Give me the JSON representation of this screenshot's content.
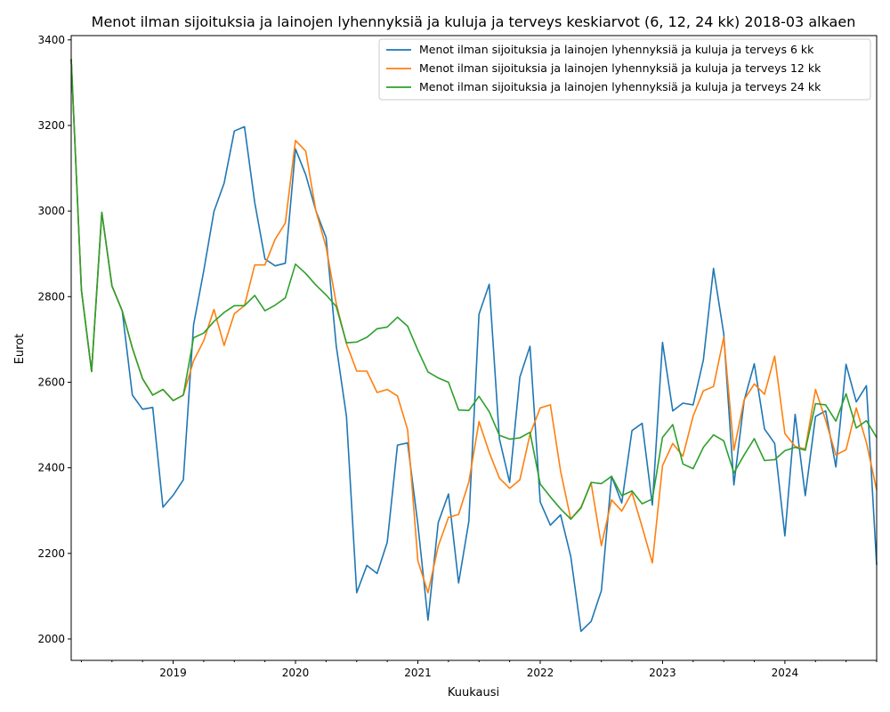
{
  "chart_data": {
    "type": "line",
    "title": "Menot ilman sijoituksia ja lainojen lyhennyksiä ja kuluja ja terveys keskiarvot (6, 12, 24 kk) 2018-03 alkaen",
    "xlabel": "Kuukausi",
    "ylabel": "Eurot",
    "start": "2018-03",
    "xlim": [
      "2018-03",
      "2024-10"
    ],
    "ylim": [
      1950,
      3410
    ],
    "year_ticks": [
      "2019",
      "2020",
      "2021",
      "2022",
      "2023",
      "2024"
    ],
    "y_ticks": [
      2000,
      2200,
      2400,
      2600,
      2800,
      3000,
      3200,
      3400
    ],
    "grid": false,
    "legend_position": "top-right",
    "series": [
      {
        "name": "Menot ilman sijoituksia ja lainojen lyhennyksiä ja kuluja ja terveys 6 kk",
        "color": "#1f77b4",
        "values": [
          3355,
          2815,
          2625,
          2997,
          2825,
          2767,
          2570,
          2537,
          2541,
          2308,
          2336,
          2372,
          2734,
          2860,
          2999,
          3065,
          3187,
          3197,
          3020,
          2888,
          2872,
          2878,
          3145,
          3085,
          3001,
          2938,
          2685,
          2520,
          2108,
          2172,
          2153,
          2226,
          2453,
          2458,
          2268,
          2044,
          2272,
          2339,
          2131,
          2275,
          2759,
          2829,
          2468,
          2366,
          2612,
          2684,
          2320,
          2266,
          2290,
          2193,
          2018,
          2041,
          2113,
          2380,
          2318,
          2487,
          2504,
          2313,
          2693,
          2533,
          2551,
          2547,
          2652,
          2866,
          2713,
          2360,
          2557,
          2643,
          2491,
          2457,
          2241,
          2525,
          2335,
          2520,
          2533,
          2402,
          2642,
          2554,
          2592,
          2173
        ]
      },
      {
        "name": "Menot ilman sijoituksia ja lainojen lyhennyksiä ja kuluja ja terveys 12 kk",
        "color": "#ff7f0e",
        "values": [
          3355,
          2815,
          2625,
          2997,
          2825,
          2767,
          2680,
          2608,
          2570,
          2583,
          2557,
          2570,
          2650,
          2697,
          2770,
          2686,
          2760,
          2779,
          2874,
          2874,
          2934,
          2972,
          3165,
          3140,
          3001,
          2916,
          2784,
          2690,
          2626,
          2626,
          2576,
          2583,
          2568,
          2489,
          2183,
          2108,
          2217,
          2284,
          2291,
          2367,
          2508,
          2436,
          2376,
          2352,
          2372,
          2478,
          2540,
          2547,
          2392,
          2280,
          2308,
          2364,
          2218,
          2325,
          2299,
          2342,
          2262,
          2178,
          2405,
          2457,
          2427,
          2521,
          2580,
          2590,
          2705,
          2441,
          2559,
          2596,
          2572,
          2661,
          2480,
          2450,
          2444,
          2583,
          2511,
          2430,
          2442,
          2540,
          2459,
          2348
        ]
      },
      {
        "name": "Menot ilman sijoituksia ja lainojen lyhennyksiä ja kuluja ja terveys 24 kk",
        "color": "#2ca02c",
        "values": [
          3355,
          2815,
          2625,
          2997,
          2825,
          2767,
          2680,
          2608,
          2570,
          2583,
          2557,
          2570,
          2704,
          2715,
          2742,
          2763,
          2779,
          2779,
          2803,
          2767,
          2780,
          2797,
          2876,
          2854,
          2827,
          2804,
          2777,
          2692,
          2694,
          2705,
          2725,
          2729,
          2752,
          2731,
          2675,
          2624,
          2610,
          2600,
          2535,
          2534,
          2567,
          2531,
          2476,
          2467,
          2470,
          2483,
          2362,
          2332,
          2304,
          2280,
          2306,
          2366,
          2363,
          2380,
          2335,
          2346,
          2316,
          2327,
          2471,
          2501,
          2409,
          2398,
          2448,
          2477,
          2463,
          2388,
          2430,
          2468,
          2417,
          2419,
          2440,
          2448,
          2441,
          2550,
          2547,
          2509,
          2573,
          2493,
          2510,
          2471
        ]
      }
    ]
  }
}
